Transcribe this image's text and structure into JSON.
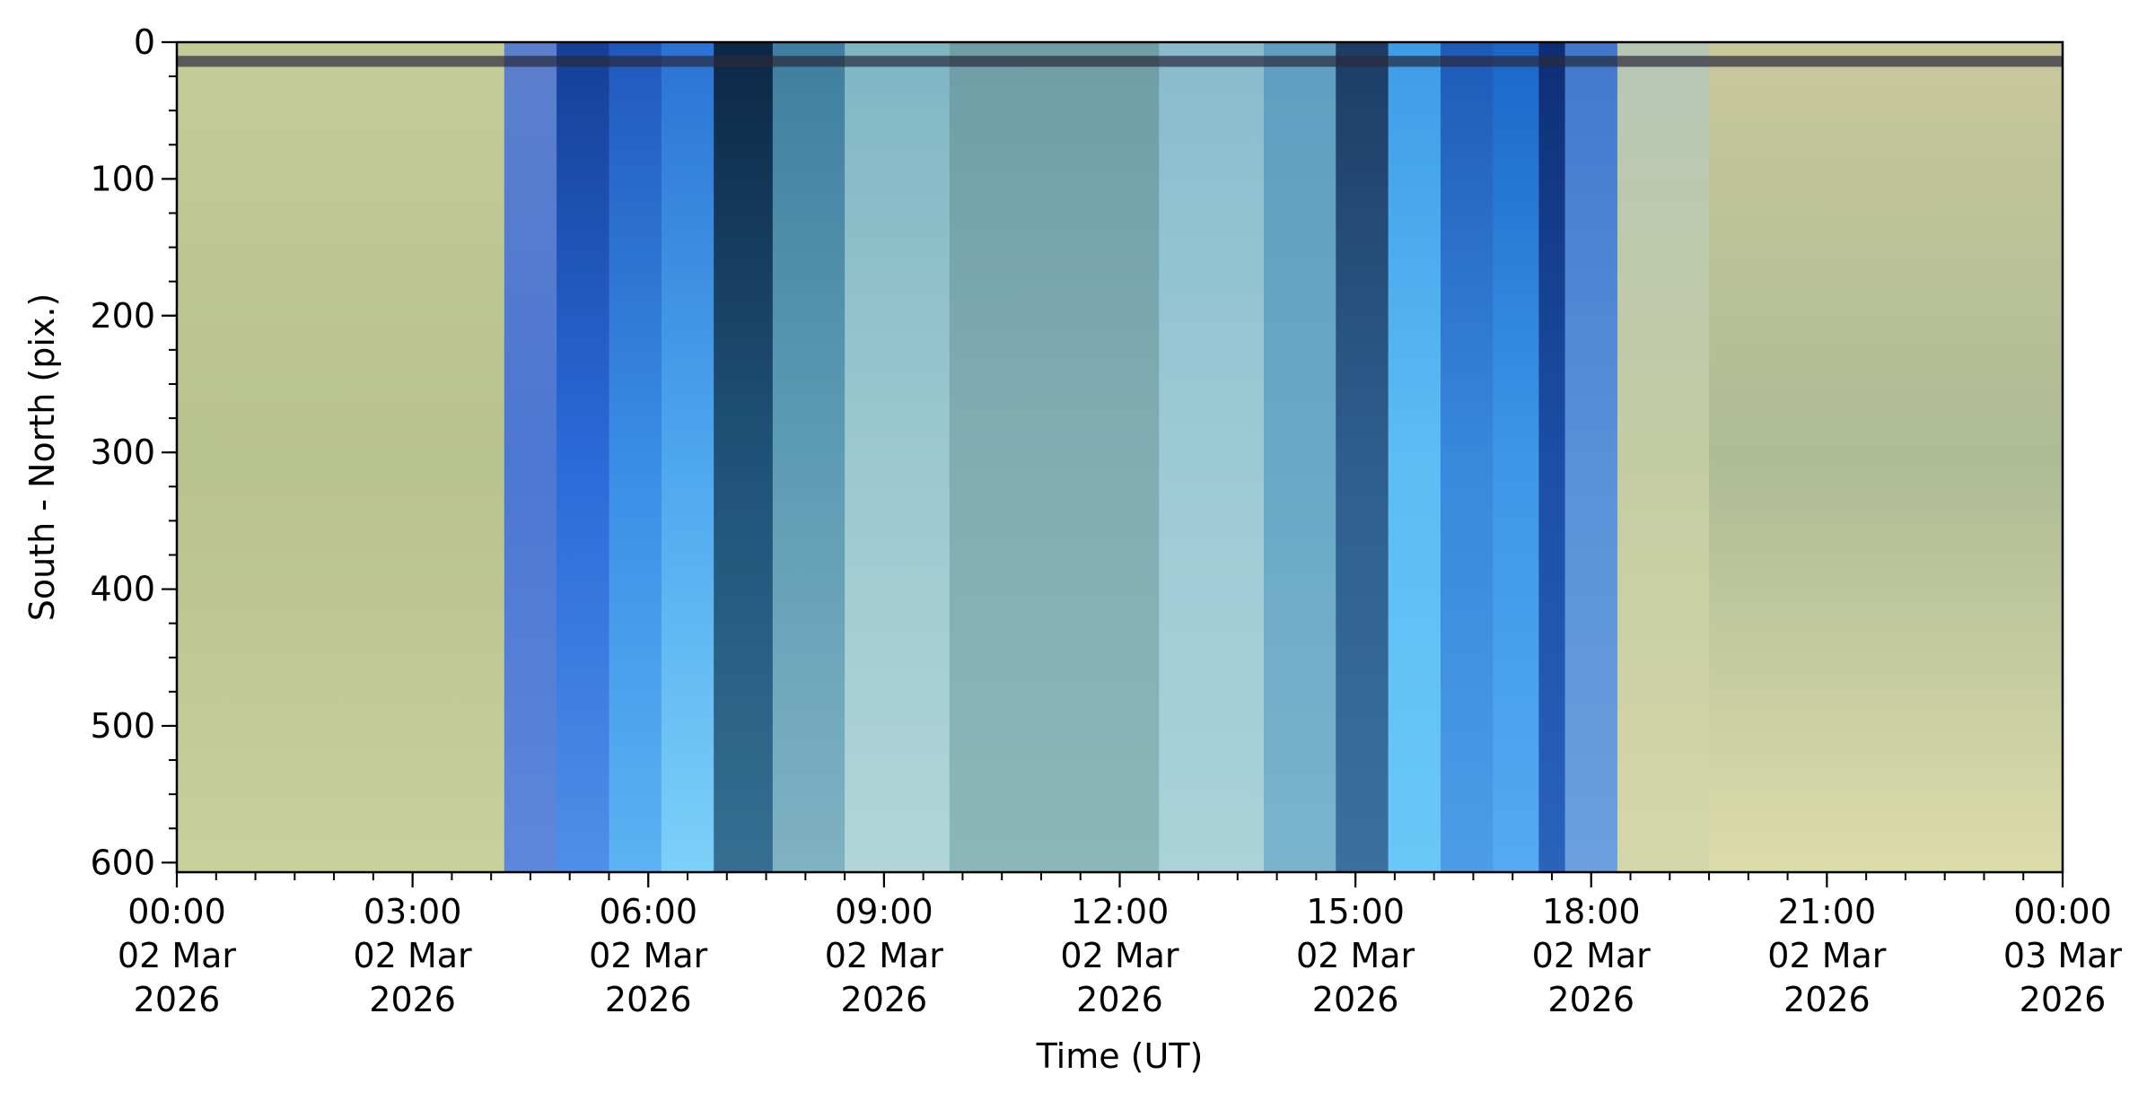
{
  "chart_data": {
    "type": "heatmap",
    "title": "",
    "xlabel": "Time (UT)",
    "ylabel": "South - North (pix.)",
    "x_axis": {
      "kind": "time",
      "range": [
        "2026-03-02T00:00",
        "2026-03-03T00:00"
      ],
      "major_ticks": [
        {
          "time": "2026-03-02T00:00",
          "lines": [
            "00:00",
            "02 Mar",
            "2026"
          ]
        },
        {
          "time": "2026-03-02T03:00",
          "lines": [
            "03:00",
            "02 Mar",
            "2026"
          ]
        },
        {
          "time": "2026-03-02T06:00",
          "lines": [
            "06:00",
            "02 Mar",
            "2026"
          ]
        },
        {
          "time": "2026-03-02T09:00",
          "lines": [
            "09:00",
            "02 Mar",
            "2026"
          ]
        },
        {
          "time": "2026-03-02T12:00",
          "lines": [
            "12:00",
            "02 Mar",
            "2026"
          ]
        },
        {
          "time": "2026-03-02T15:00",
          "lines": [
            "15:00",
            "02 Mar",
            "2026"
          ]
        },
        {
          "time": "2026-03-02T18:00",
          "lines": [
            "18:00",
            "02 Mar",
            "2026"
          ]
        },
        {
          "time": "2026-03-02T21:00",
          "lines": [
            "21:00",
            "02 Mar",
            "2026"
          ]
        },
        {
          "time": "2026-03-03T00:00",
          "lines": [
            "00:00",
            "03 Mar",
            "2026"
          ]
        }
      ],
      "minor_tick_interval_minutes": 30
    },
    "y_axis": {
      "range": [
        0,
        607
      ],
      "inverted": true,
      "major_ticks": [
        0,
        100,
        200,
        300,
        400,
        500,
        600
      ],
      "minor_tick_interval": 25
    },
    "grid": false,
    "time_bands": [
      {
        "start": "2026-03-02T00:00",
        "end": "2026-03-02T04:10",
        "top": "#c4cc98",
        "mid": "#b8c28e",
        "bottom": "#c8d09c"
      },
      {
        "start": "2026-03-02T04:10",
        "end": "2026-03-02T04:50",
        "top": "#5b7fcc",
        "mid": "#4d78d2",
        "bottom": "#5d87da"
      },
      {
        "start": "2026-03-02T04:50",
        "end": "2026-03-02T05:30",
        "top": "#153f96",
        "mid": "#2a6ad8",
        "bottom": "#4e8fe8"
      },
      {
        "start": "2026-03-02T05:30",
        "end": "2026-03-02T06:10",
        "top": "#1f58bc",
        "mid": "#3a8ce6",
        "bottom": "#5cb2f2"
      },
      {
        "start": "2026-03-02T06:10",
        "end": "2026-03-02T06:50",
        "top": "#2a72d4",
        "mid": "#4ea6ee",
        "bottom": "#7cd0f8"
      },
      {
        "start": "2026-03-02T06:50",
        "end": "2026-03-02T07:35",
        "top": "#0d2745",
        "mid": "#1f5278",
        "bottom": "#356f92"
      },
      {
        "start": "2026-03-02T07:35",
        "end": "2026-03-02T08:30",
        "top": "#3f7ea0",
        "mid": "#5e9bb4",
        "bottom": "#7fb2c2"
      },
      {
        "start": "2026-03-02T08:30",
        "end": "2026-03-02T09:50",
        "top": "#7fb6c4",
        "mid": "#9bc8d0",
        "bottom": "#b2d5d8"
      },
      {
        "start": "2026-03-02T09:50",
        "end": "2026-03-02T12:30",
        "top": "#6e9ea6",
        "mid": "#80adb2",
        "bottom": "#8ab8b8"
      },
      {
        "start": "2026-03-02T12:30",
        "end": "2026-03-02T13:50",
        "top": "#88bccc",
        "mid": "#9ccad6",
        "bottom": "#aad2d8"
      },
      {
        "start": "2026-03-02T13:50",
        "end": "2026-03-02T14:45",
        "top": "#5f9ec0",
        "mid": "#6aa8c8",
        "bottom": "#7ab4cc"
      },
      {
        "start": "2026-03-02T14:45",
        "end": "2026-03-02T15:25",
        "top": "#1d3c64",
        "mid": "#2d5e8e",
        "bottom": "#3b709e"
      },
      {
        "start": "2026-03-02T15:25",
        "end": "2026-03-02T16:05",
        "top": "#3d9ce6",
        "mid": "#5cbcf4",
        "bottom": "#6ac8f8"
      },
      {
        "start": "2026-03-02T16:05",
        "end": "2026-03-02T16:45",
        "top": "#1e5ab8",
        "mid": "#3888dc",
        "bottom": "#4c9ce6"
      },
      {
        "start": "2026-03-02T16:45",
        "end": "2026-03-02T17:20",
        "top": "#1a66c8",
        "mid": "#3d96e8",
        "bottom": "#55aaf0"
      },
      {
        "start": "2026-03-02T17:20",
        "end": "2026-03-02T17:40",
        "top": "#0e2e74",
        "mid": "#1c4ea6",
        "bottom": "#2a62bc"
      },
      {
        "start": "2026-03-02T17:40",
        "end": "2026-03-02T18:20",
        "top": "#4178cc",
        "mid": "#5a90d8",
        "bottom": "#6aa0de"
      },
      {
        "start": "2026-03-02T18:20",
        "end": "2026-03-02T19:30",
        "top": "#b8c6b4",
        "mid": "#c4cca4",
        "bottom": "#d4d8a8"
      },
      {
        "start": "2026-03-02T19:30",
        "end": "2026-03-03T00:00",
        "top": "#c8c89a",
        "mid": "#aebb96",
        "bottom": "#dcdcaa"
      }
    ],
    "dark_row_band": {
      "y": [
        10,
        18
      ],
      "color": "#2a2a3a"
    }
  }
}
